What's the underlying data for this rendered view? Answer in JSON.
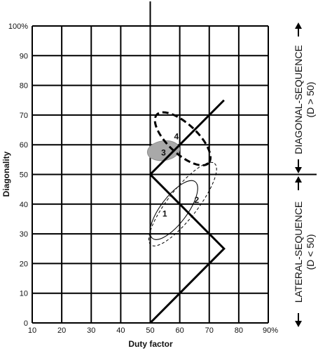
{
  "chart_data": {
    "type": "line",
    "xlabel": "Duty factor",
    "ylabel": "Diagonality",
    "xlim": [
      10,
      90
    ],
    "ylim": [
      0,
      100
    ],
    "x_ticks": [
      "10",
      "20",
      "30",
      "40",
      "50",
      "60",
      "70",
      "80",
      "90%"
    ],
    "y_ticks": [
      "0",
      "10",
      "20",
      "30",
      "40",
      "50",
      "60",
      "70",
      "80",
      "90",
      "100%"
    ],
    "grid": true,
    "divider_lines": {
      "x": 50,
      "y": 50
    },
    "boundary_lines": [
      {
        "points": [
          [
            50,
            0
          ],
          [
            75,
            25
          ],
          [
            50,
            50
          ],
          [
            75,
            75
          ]
        ]
      }
    ],
    "regions": [
      {
        "label": "1",
        "style": "thin solid",
        "center": [
          58,
          38
        ],
        "rx": 12,
        "ry": 4.5,
        "angle_deg": -53
      },
      {
        "label": "2",
        "style": "thin dashed",
        "center": [
          61,
          40
        ],
        "rx": 17.5,
        "ry": 5,
        "angle_deg": -52
      },
      {
        "label": "3",
        "style": "gray filled",
        "center": [
          54.5,
          58
        ],
        "rx": 5.5,
        "ry": 3.3,
        "angle_deg": -8
      },
      {
        "label": "4",
        "style": "thick dashed",
        "center": [
          61,
          62
        ],
        "rx": 12,
        "ry": 5,
        "angle_deg": 43
      }
    ],
    "side_labels": {
      "upper": {
        "text": "DIAGONAL-SEQUENCE",
        "sub": "(D > 50)"
      },
      "lower": {
        "text": "LATERAL-SEQUENCE",
        "sub": "(D < 50)"
      }
    },
    "colors": {
      "lines": "#000000",
      "region3_fill": "#a9a9a9"
    }
  }
}
